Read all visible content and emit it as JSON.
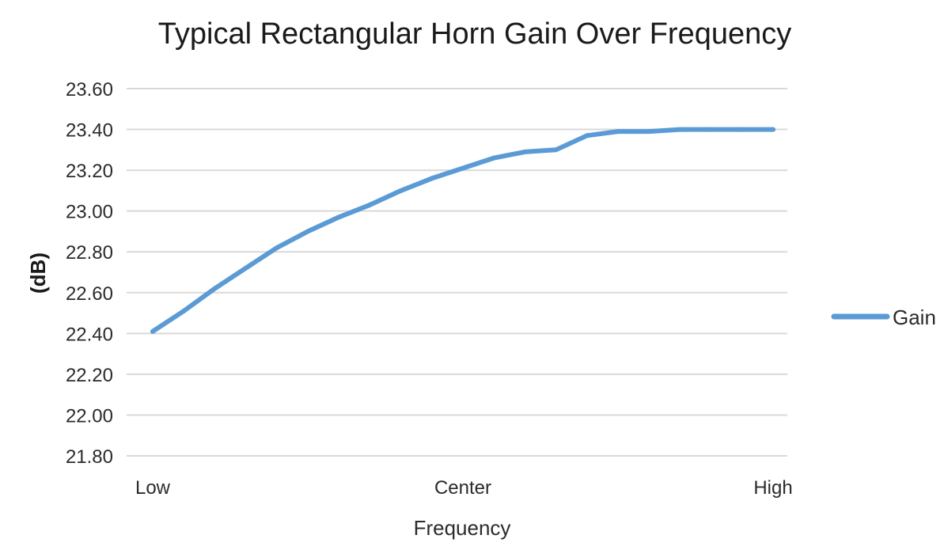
{
  "chart_data": {
    "type": "line",
    "title": "Typical Rectangular Horn Gain Over Frequency",
    "xlabel": "Frequency",
    "ylabel": "(dB)",
    "x_tick_labels": [
      "Low",
      "Center",
      "High"
    ],
    "ylim": [
      21.8,
      23.6
    ],
    "y_ticks": [
      "21.80",
      "22.00",
      "22.20",
      "22.40",
      "22.60",
      "22.80",
      "23.00",
      "23.20",
      "23.40",
      "23.60"
    ],
    "grid": true,
    "legend_position": "right",
    "series": [
      {
        "name": "Gain",
        "color": "#5b9bd5",
        "values": [
          22.41,
          22.51,
          22.62,
          22.72,
          22.82,
          22.9,
          22.97,
          23.03,
          23.1,
          23.16,
          23.21,
          23.26,
          23.29,
          23.3,
          23.37,
          23.39,
          23.39,
          23.4,
          23.4,
          23.4,
          23.4
        ]
      }
    ]
  }
}
